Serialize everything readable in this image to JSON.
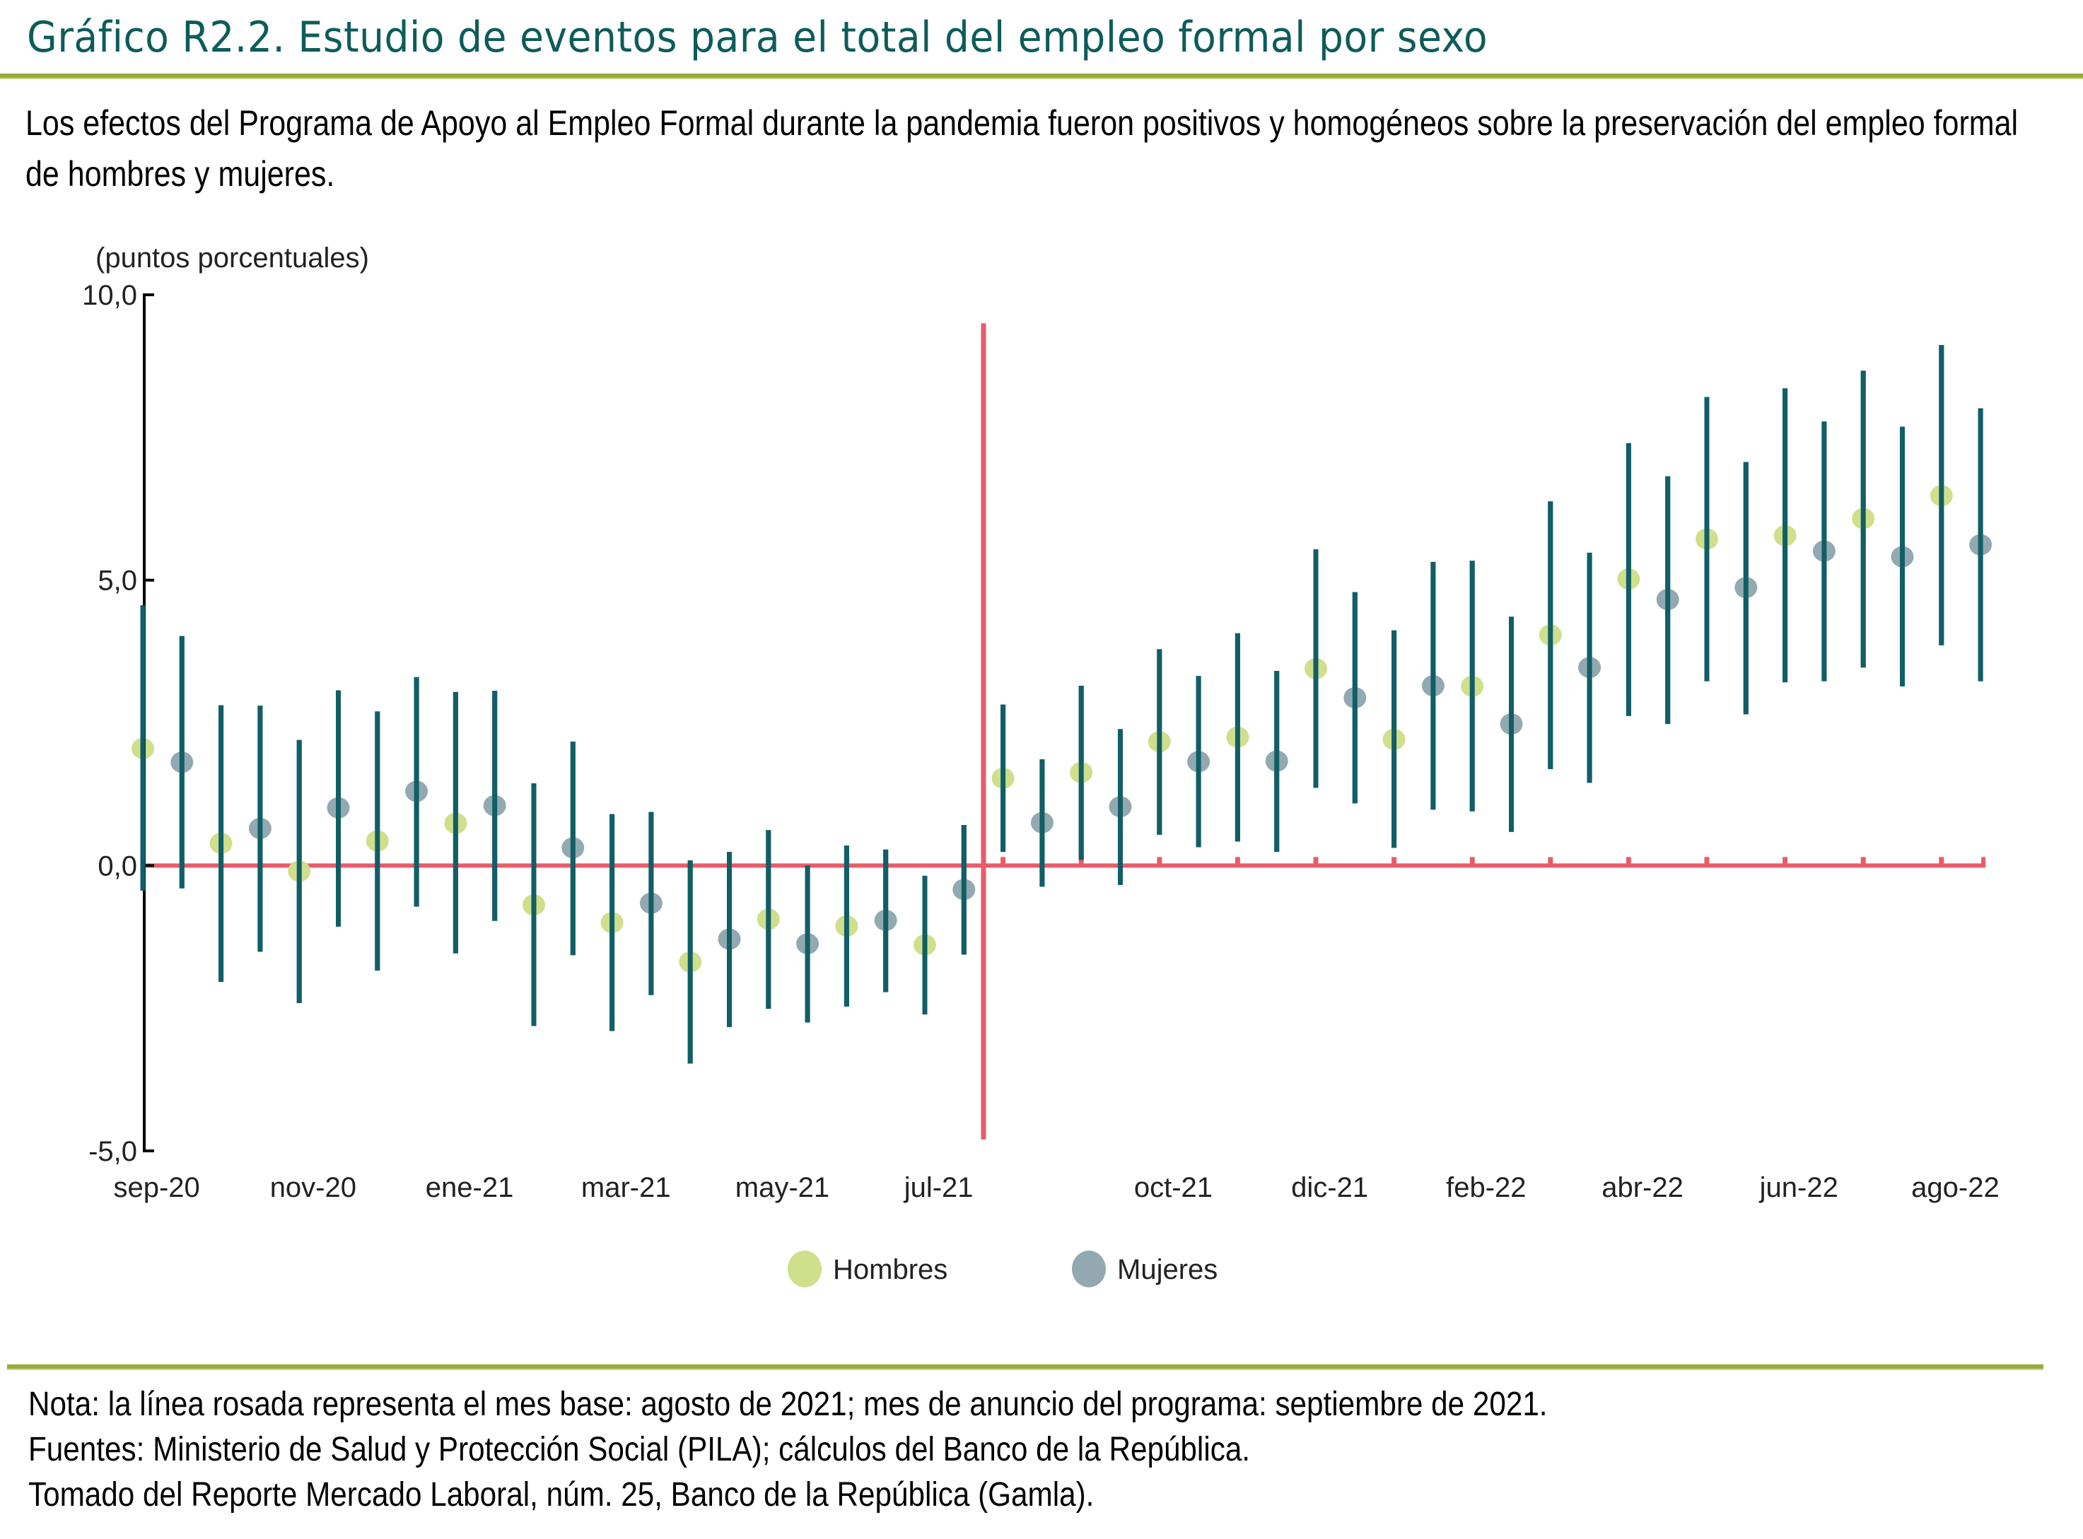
{
  "header": {
    "title": "Gráfico R2.2. Estudio de eventos para el total del empleo formal por sexo",
    "subtitle": "Los efectos del Programa de Apoyo al Empleo Formal durante la pandemia fueron positivos y homogéneos sobre la preservación del empleo formal de hombres y mujeres."
  },
  "colors": {
    "title": "#0d5c5a",
    "rule": "#9aab3c",
    "reference_line": "#e85c6a",
    "error_bar": "#115e66",
    "hombres": "#cfdf8c",
    "mujeres": "#93a9b1",
    "axis": "#000000"
  },
  "notes": [
    "Nota: la línea rosada representa el mes base: agosto de 2021; mes de anuncio del programa: septiembre de 2021.",
    "Fuentes: Ministerio de Salud y Protección Social (PILA); cálculos del Banco de la República.",
    "Tomado del Reporte Mercado Laboral, núm. 25, Banco de la República (Gamla)."
  ],
  "chart_data": {
    "type": "scatter",
    "title": "Estudio de eventos para el total del empleo formal por sexo",
    "ylabel": "(puntos porcentuales)",
    "xlabel": "",
    "ylim": [
      -5,
      10
    ],
    "yticks": [
      10,
      5,
      0,
      -5
    ],
    "ytick_labels": [
      "10,0",
      "5,0",
      "0,0",
      "-5,0"
    ],
    "grid": false,
    "legend_position": "bottom-center",
    "months": [
      "sep-20",
      "oct-20",
      "nov-20",
      "dic-20",
      "ene-21",
      "feb-21",
      "mar-21",
      "abr-21",
      "may-21",
      "jun-21",
      "jul-21",
      "ago-21",
      "sep-21",
      "oct-21",
      "nov-21",
      "dic-21",
      "ene-22",
      "feb-22",
      "mar-22",
      "abr-22",
      "may-22",
      "jun-22",
      "jul-22",
      "ago-22"
    ],
    "xtick_labels": [
      {
        "month_index": 0,
        "label": "sep-20"
      },
      {
        "month_index": 2,
        "label": "nov-20"
      },
      {
        "month_index": 4,
        "label": "ene-21"
      },
      {
        "month_index": 6,
        "label": "mar-21"
      },
      {
        "month_index": 8,
        "label": "may-21"
      },
      {
        "month_index": 10,
        "label": "jul-21"
      },
      {
        "month_index": 13,
        "label": "oct-21"
      },
      {
        "month_index": 15,
        "label": "dic-21"
      },
      {
        "month_index": 17,
        "label": "feb-22"
      },
      {
        "month_index": 19,
        "label": "abr-22"
      },
      {
        "month_index": 21,
        "label": "jun-22"
      },
      {
        "month_index": 23,
        "label": "ago-22"
      }
    ],
    "reference_lines": {
      "horizontal_y": 0,
      "vertical_between_month_index": [
        10,
        11
      ],
      "vertical_range": [
        -4.8,
        9.5
      ],
      "base_month": "ago-21"
    },
    "series": [
      {
        "name": "Hombres",
        "estimate": [
          2.05,
          0.39,
          -0.1,
          0.43,
          0.74,
          -0.69,
          -1.0,
          -1.69,
          -0.94,
          -1.06,
          -1.39,
          1.53,
          1.63,
          2.17,
          2.25,
          3.45,
          2.21,
          3.14,
          4.04,
          5.02,
          5.72,
          5.78,
          6.08,
          6.48
        ],
        "ci_upper": [
          4.56,
          2.81,
          2.2,
          2.7,
          3.04,
          1.44,
          0.9,
          0.09,
          0.62,
          0.35,
          -0.18,
          2.82,
          3.15,
          3.79,
          4.07,
          5.54,
          4.12,
          5.34,
          6.38,
          7.4,
          8.21,
          8.36,
          8.67,
          9.12
        ],
        "ci_lower": [
          -0.44,
          -2.04,
          -2.41,
          -1.84,
          -1.54,
          -2.81,
          -2.9,
          -3.47,
          -2.51,
          -2.47,
          -2.61,
          0.24,
          0.1,
          0.54,
          0.42,
          1.36,
          0.31,
          0.95,
          1.69,
          2.62,
          3.23,
          3.21,
          3.47,
          3.86
        ]
      },
      {
        "name": "Mujeres",
        "estimate": [
          1.81,
          0.65,
          1.01,
          1.3,
          1.05,
          0.31,
          -0.66,
          -1.29,
          -1.37,
          -0.96,
          -0.42,
          0.75,
          1.03,
          1.82,
          1.83,
          2.94,
          3.15,
          2.48,
          3.47,
          4.66,
          4.87,
          5.51,
          5.41,
          5.62
        ],
        "ci_upper": [
          4.02,
          2.8,
          3.07,
          3.3,
          3.06,
          2.17,
          0.94,
          0.24,
          0.0,
          0.28,
          0.71,
          1.86,
          2.39,
          3.32,
          3.41,
          4.79,
          5.32,
          4.36,
          5.48,
          6.82,
          7.07,
          7.78,
          7.69,
          8.01
        ],
        "ci_lower": [
          -0.4,
          -1.51,
          -1.07,
          -0.72,
          -0.97,
          -1.57,
          -2.27,
          -2.83,
          -2.75,
          -2.22,
          -1.56,
          -0.37,
          -0.34,
          0.32,
          0.24,
          1.09,
          0.98,
          0.59,
          1.45,
          2.48,
          2.65,
          3.23,
          3.14,
          3.23
        ]
      }
    ]
  }
}
